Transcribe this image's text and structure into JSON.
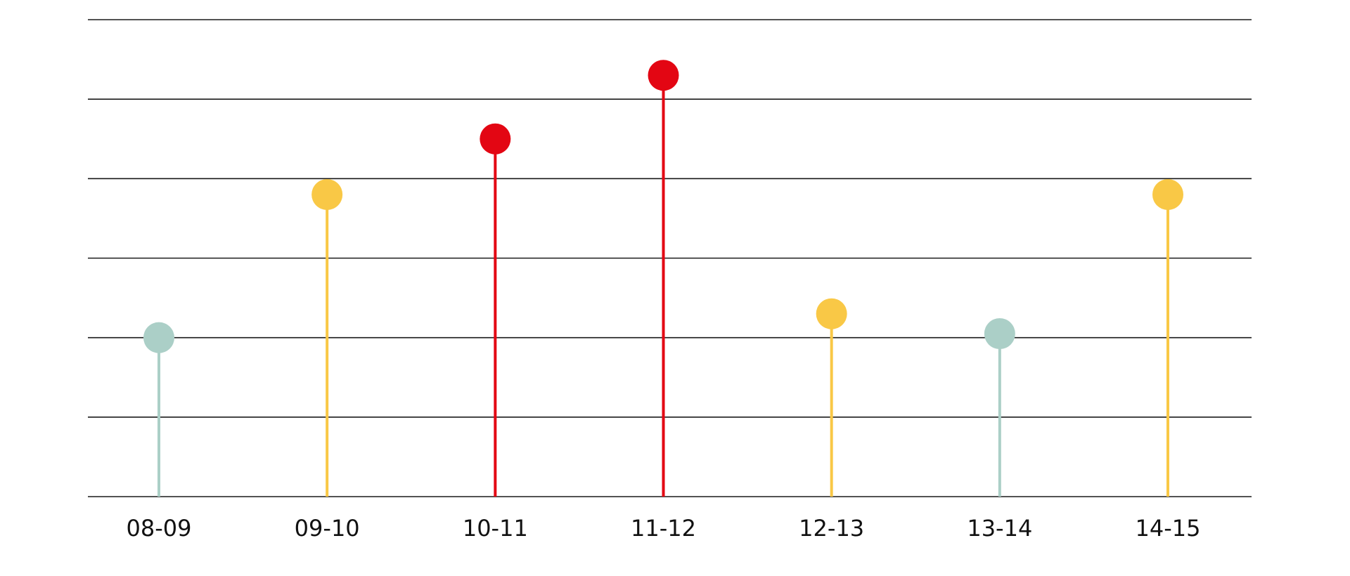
{
  "chart_data": {
    "type": "lollipop",
    "categories": [
      "08-09",
      "09-10",
      "10-11",
      "11-12",
      "12-13",
      "13-14",
      "14-15"
    ],
    "values": [
      2.0,
      3.8,
      4.5,
      5.3,
      2.3,
      2.05,
      3.8
    ],
    "point_colors": [
      "#abcfc7",
      "#f9c846",
      "#e30613",
      "#e30613",
      "#f9c846",
      "#abcfc7",
      "#f9c846"
    ],
    "ylim": [
      0,
      6
    ],
    "grid": true,
    "title": "",
    "xlabel": "",
    "ylabel": ""
  }
}
